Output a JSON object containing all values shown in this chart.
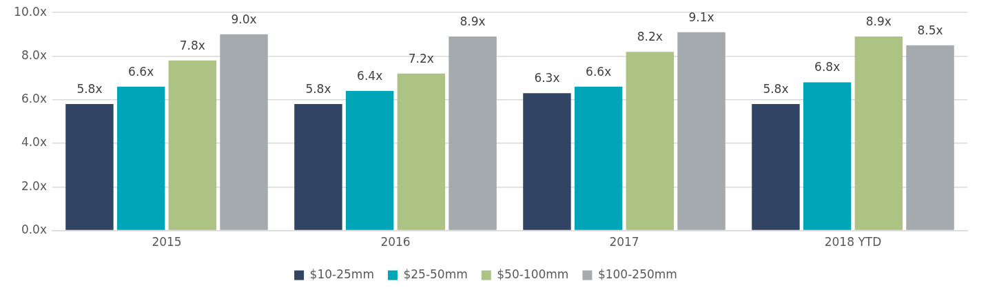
{
  "chart_data": {
    "type": "bar",
    "categories": [
      "2015",
      "2016",
      "2017",
      "2018 YTD"
    ],
    "series": [
      {
        "name": "$10-25mm",
        "color": "#324463",
        "values": [
          5.8,
          5.8,
          6.3,
          5.8
        ],
        "value_labels": [
          "5.8x",
          "5.8x",
          "6.3x",
          "5.8x"
        ]
      },
      {
        "name": "$25-50mm",
        "color": "#00a6b8",
        "values": [
          6.6,
          6.4,
          6.6,
          6.8
        ],
        "value_labels": [
          "6.6x",
          "6.4x",
          "6.6x",
          "6.8x"
        ]
      },
      {
        "name": "$50-100mm",
        "color": "#adc383",
        "values": [
          7.8,
          7.2,
          8.2,
          8.9
        ],
        "value_labels": [
          "7.8x",
          "7.2x",
          "8.2x",
          "8.9x"
        ]
      },
      {
        "name": "$100-250mm",
        "color": "#a4aaad",
        "values": [
          9.0,
          8.9,
          9.1,
          8.5
        ],
        "value_labels": [
          "9.0x",
          "8.9x",
          "9.1x",
          "8.5x"
        ]
      }
    ],
    "ylim": [
      0,
      10
    ],
    "yticks": [
      {
        "value": 0,
        "label": "0.0x"
      },
      {
        "value": 2,
        "label": "2.0x"
      },
      {
        "value": 4,
        "label": "4.0x"
      },
      {
        "value": 6,
        "label": "6.0x"
      },
      {
        "value": 8,
        "label": "8.0x"
      },
      {
        "value": 10,
        "label": "10.0x"
      }
    ],
    "grid": "y",
    "legend": "bottom"
  }
}
